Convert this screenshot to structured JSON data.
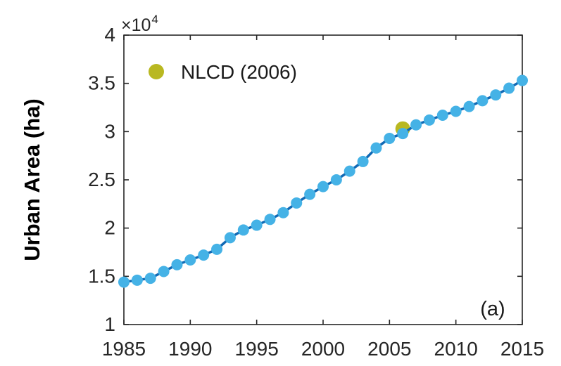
{
  "figure": {
    "background": "#ffffff",
    "axis_color": "#262626"
  },
  "chart_data": {
    "type": "line",
    "title": "",
    "xlabel": "",
    "ylabel": "Urban Area (ha)",
    "y_multiplier": {
      "base": "×10",
      "exponent": "4"
    },
    "panel_label": "(a)",
    "x": [
      1985,
      1986,
      1987,
      1988,
      1989,
      1990,
      1991,
      1992,
      1993,
      1994,
      1995,
      1996,
      1997,
      1998,
      1999,
      2000,
      2001,
      2002,
      2003,
      2004,
      2005,
      2006,
      2007,
      2008,
      2009,
      2010,
      2011,
      2012,
      2013,
      2014,
      2015
    ],
    "series": [
      {
        "type": "line+markers",
        "line_color": "#1169b4",
        "marker_color": "#45b2e6",
        "values": [
          14400,
          14600,
          14800,
          15500,
          16200,
          16700,
          17200,
          17800,
          19000,
          19800,
          20300,
          20900,
          21600,
          22600,
          23500,
          24300,
          25000,
          25900,
          26900,
          28300,
          29300,
          29800,
          30700,
          31200,
          31700,
          32100,
          32600,
          33200,
          33800,
          34500,
          35300
        ]
      },
      {
        "name": "NLCD (2006)",
        "type": "scatter",
        "marker_color": "#b9b821",
        "points": [
          {
            "x": 2006,
            "y": 30300
          }
        ]
      }
    ],
    "xlim": [
      1985,
      2015
    ],
    "ylim": [
      10000,
      40000
    ],
    "xticks": [
      1985,
      1990,
      1995,
      2000,
      2005,
      2010,
      2015
    ],
    "yticks": [
      10000,
      15000,
      20000,
      25000,
      30000,
      35000,
      40000
    ],
    "ytick_labels": [
      "1",
      "1.5",
      "2",
      "2.5",
      "3",
      "3.5",
      "4"
    ],
    "grid": false,
    "legend_position": "inside top-left"
  }
}
